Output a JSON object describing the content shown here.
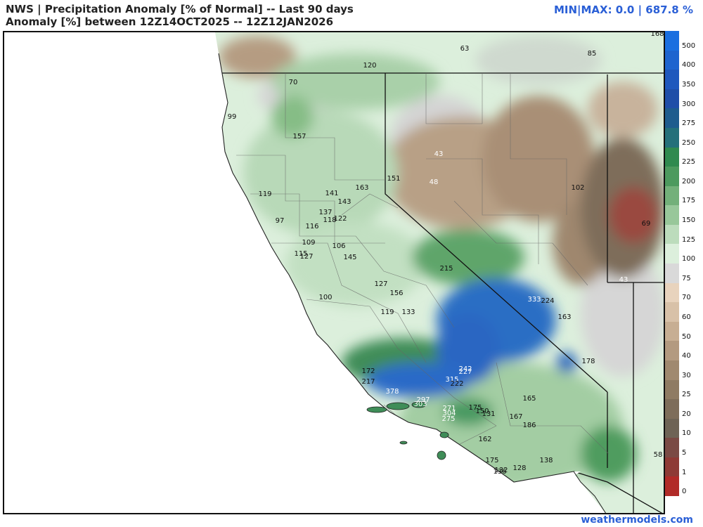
{
  "header": {
    "line1": "NWS | Precipitation Anomaly [% of Normal] -- Last 90 days",
    "line2": "Anomaly [%] between 12Z14OCT2025 -- 12Z12JAN2026",
    "minmax": "MIN|MAX: 0.0 | 687.8 %"
  },
  "credit": "weathermodels.com",
  "colorbar": {
    "levels": [
      {
        "label": "500",
        "color": "#1a6fe0"
      },
      {
        "label": "400",
        "color": "#1e64cf"
      },
      {
        "label": "350",
        "color": "#1f58bd"
      },
      {
        "label": "300",
        "color": "#1f4ea8"
      },
      {
        "label": "275",
        "color": "#1e5c8e"
      },
      {
        "label": "250",
        "color": "#24707a"
      },
      {
        "label": "225",
        "color": "#2f8a4f"
      },
      {
        "label": "200",
        "color": "#4c9a5e"
      },
      {
        "label": "175",
        "color": "#73b07a"
      },
      {
        "label": "150",
        "color": "#98c79a"
      },
      {
        "label": "125",
        "color": "#bcdcbc"
      },
      {
        "label": "100",
        "color": "#dcefdc"
      },
      {
        "label": "75",
        "color": "#d9d9d9"
      },
      {
        "label": "70",
        "color": "#e8d3bd"
      },
      {
        "label": "60",
        "color": "#d8c1a8"
      },
      {
        "label": "50",
        "color": "#c7ae93"
      },
      {
        "label": "40",
        "color": "#b39a80"
      },
      {
        "label": "30",
        "color": "#a0896f"
      },
      {
        "label": "25",
        "color": "#8f7b63"
      },
      {
        "label": "20",
        "color": "#7e6d5a"
      },
      {
        "label": "10",
        "color": "#6e6355"
      },
      {
        "label": "5",
        "color": "#7a4a44"
      },
      {
        "label": "1",
        "color": "#8e3a35"
      },
      {
        "label": "0",
        "color": "#b12b28"
      }
    ]
  },
  "map_labels": [
    {
      "text": "168",
      "tone": "dark"
    },
    {
      "text": "63",
      "tone": "dark"
    },
    {
      "text": "85",
      "tone": "dark"
    },
    {
      "text": "120",
      "tone": "dark"
    },
    {
      "text": "70",
      "tone": "dark"
    },
    {
      "text": "99",
      "tone": "dark"
    },
    {
      "text": "157",
      "tone": "dark"
    },
    {
      "text": "43",
      "tone": "light"
    },
    {
      "text": "48",
      "tone": "light"
    },
    {
      "text": "151",
      "tone": "dark"
    },
    {
      "text": "163",
      "tone": "dark"
    },
    {
      "text": "102",
      "tone": "dark"
    },
    {
      "text": "119",
      "tone": "dark"
    },
    {
      "text": "141",
      "tone": "dark"
    },
    {
      "text": "143",
      "tone": "dark"
    },
    {
      "text": "137",
      "tone": "dark"
    },
    {
      "text": "118",
      "tone": "dark"
    },
    {
      "text": "122",
      "tone": "dark"
    },
    {
      "text": "97",
      "tone": "dark"
    },
    {
      "text": "116",
      "tone": "dark"
    },
    {
      "text": "69",
      "tone": "dark"
    },
    {
      "text": "109",
      "tone": "dark"
    },
    {
      "text": "106",
      "tone": "dark"
    },
    {
      "text": "115",
      "tone": "dark"
    },
    {
      "text": "127",
      "tone": "dark"
    },
    {
      "text": "145",
      "tone": "dark"
    },
    {
      "text": "215",
      "tone": "dark"
    },
    {
      "text": "43",
      "tone": "light"
    },
    {
      "text": "127",
      "tone": "dark"
    },
    {
      "text": "156",
      "tone": "dark"
    },
    {
      "text": "100",
      "tone": "dark"
    },
    {
      "text": "333",
      "tone": "light"
    },
    {
      "text": "224",
      "tone": "dark"
    },
    {
      "text": "119",
      "tone": "dark"
    },
    {
      "text": "133",
      "tone": "dark"
    },
    {
      "text": "163",
      "tone": "dark"
    },
    {
      "text": "178",
      "tone": "dark"
    },
    {
      "text": "172",
      "tone": "dark"
    },
    {
      "text": "242",
      "tone": "light"
    },
    {
      "text": "227",
      "tone": "light"
    },
    {
      "text": "217",
      "tone": "dark"
    },
    {
      "text": "315",
      "tone": "light"
    },
    {
      "text": "222",
      "tone": "dark"
    },
    {
      "text": "378",
      "tone": "light"
    },
    {
      "text": "297",
      "tone": "light"
    },
    {
      "text": "303",
      "tone": "light"
    },
    {
      "text": "271",
      "tone": "light"
    },
    {
      "text": "175",
      "tone": "dark"
    },
    {
      "text": "165",
      "tone": "dark"
    },
    {
      "text": "150",
      "tone": "dark"
    },
    {
      "text": "131",
      "tone": "dark"
    },
    {
      "text": "304",
      "tone": "light"
    },
    {
      "text": "167",
      "tone": "dark"
    },
    {
      "text": "275",
      "tone": "light"
    },
    {
      "text": "186",
      "tone": "dark"
    },
    {
      "text": "162",
      "tone": "dark"
    },
    {
      "text": "58",
      "tone": "dark"
    },
    {
      "text": "175",
      "tone": "dark"
    },
    {
      "text": "138",
      "tone": "dark"
    },
    {
      "text": "132",
      "tone": "dark"
    },
    {
      "text": "128",
      "tone": "dark"
    },
    {
      "text": "136",
      "tone": "dark"
    }
  ]
}
